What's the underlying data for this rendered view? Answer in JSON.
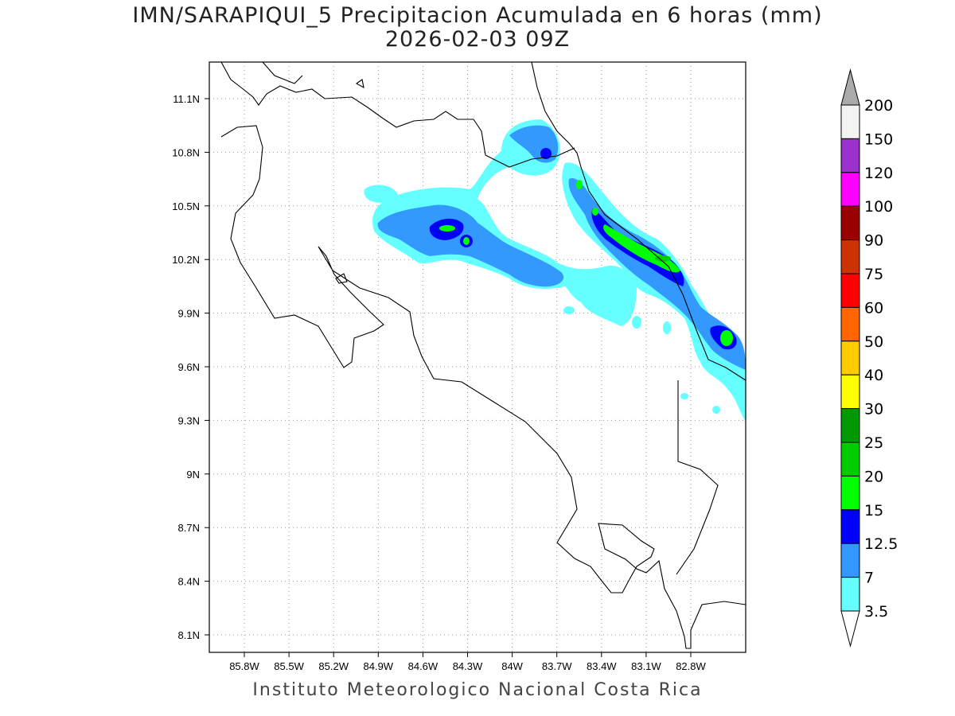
{
  "title": {
    "line1": "IMN/SARAPIQUI_5 Precipitacion Acumulada en 6 horas (mm)",
    "line2": "2026-02-03 09Z"
  },
  "footer": "Instituto Meteorologico Nacional Costa Rica",
  "map": {
    "lon_labels": [
      "85.8W",
      "85.5W",
      "85.2W",
      "84.9W",
      "84.6W",
      "84.3W",
      "84W",
      "83.7W",
      "83.4W",
      "83.1W",
      "82.8W"
    ],
    "lat_labels": [
      "11.1N",
      "10.8N",
      "10.5N",
      "10.2N",
      "9.9N",
      "9.6N",
      "9.3N",
      "9N",
      "8.7N",
      "8.4N",
      "8.1N"
    ]
  },
  "colorbar": {
    "labels": [
      "200",
      "150",
      "120",
      "100",
      "90",
      "75",
      "60",
      "50",
      "40",
      "30",
      "25",
      "20",
      "15",
      "12.5",
      "7",
      "3.5"
    ],
    "over_color": "#aaaaaa",
    "under_color": "#ffffff",
    "colors": [
      "#f3f3f3",
      "#9933cc",
      "#ff00ff",
      "#990000",
      "#cc3300",
      "#ff0000",
      "#ff6600",
      "#ffcc00",
      "#ffff00",
      "#009900",
      "#00cc00",
      "#00ff00",
      "#0000ff",
      "#3399ff",
      "#66ffff"
    ]
  }
}
